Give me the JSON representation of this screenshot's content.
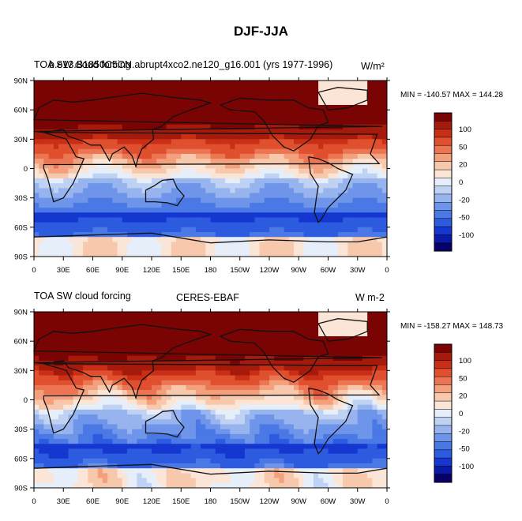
{
  "title": "DJF-JJA",
  "colors": {
    "levels": [
      "#08006a",
      "#0a1aa6",
      "#1537d0",
      "#2c5be0",
      "#4a79e6",
      "#6f95ea",
      "#97b4ee",
      "#c0d2f3",
      "#e6eefa",
      "#fbe5d6",
      "#f8c8ad",
      "#f3a07c",
      "#ec7654",
      "#e0502f",
      "#c92f16",
      "#a61a0c",
      "#7a0403"
    ]
  },
  "chart_data": [
    {
      "type": "heatmap",
      "left_title": "TOA SW cloud forcing",
      "center_title": "b.e13.B1850C5CN.abrupt4xco2.ne120_g16.001 (yrs 1977-1996)",
      "units": "W/m²",
      "min_max": "MIN = -140.57 MAX = 144.28",
      "min": -140.57,
      "max": 144.28,
      "x_ticks": [
        "0",
        "30E",
        "60E",
        "90E",
        "120E",
        "150E",
        "180",
        "150W",
        "120W",
        "90W",
        "60W",
        "30W",
        "0"
      ],
      "y_ticks": [
        "90N",
        "60N",
        "30N",
        "0",
        "30S",
        "60S",
        "90S"
      ],
      "colorbar_labels": [
        "100",
        "50",
        "20",
        "0",
        "-20",
        "-50",
        "-100"
      ],
      "colorbar_levels": [
        -100,
        -50,
        -20,
        0,
        20,
        50,
        100
      ]
    },
    {
      "type": "heatmap",
      "left_title": "TOA SW cloud forcing",
      "center_title": "CERES-EBAF",
      "units": "W m-2",
      "min_max": "MIN = -158.27 MAX = 148.73",
      "min": -158.27,
      "max": 148.73,
      "x_ticks": [
        "0",
        "30E",
        "60E",
        "90E",
        "120E",
        "150E",
        "180",
        "150W",
        "120W",
        "90W",
        "60W",
        "30W",
        "0"
      ],
      "y_ticks": [
        "90N",
        "60N",
        "30N",
        "0",
        "30S",
        "60S",
        "90S"
      ],
      "colorbar_labels": [
        "100",
        "50",
        "20",
        "0",
        "-20",
        "-50",
        "-100"
      ],
      "colorbar_levels": [
        -100,
        -50,
        -20,
        0,
        20,
        50,
        100
      ]
    }
  ]
}
